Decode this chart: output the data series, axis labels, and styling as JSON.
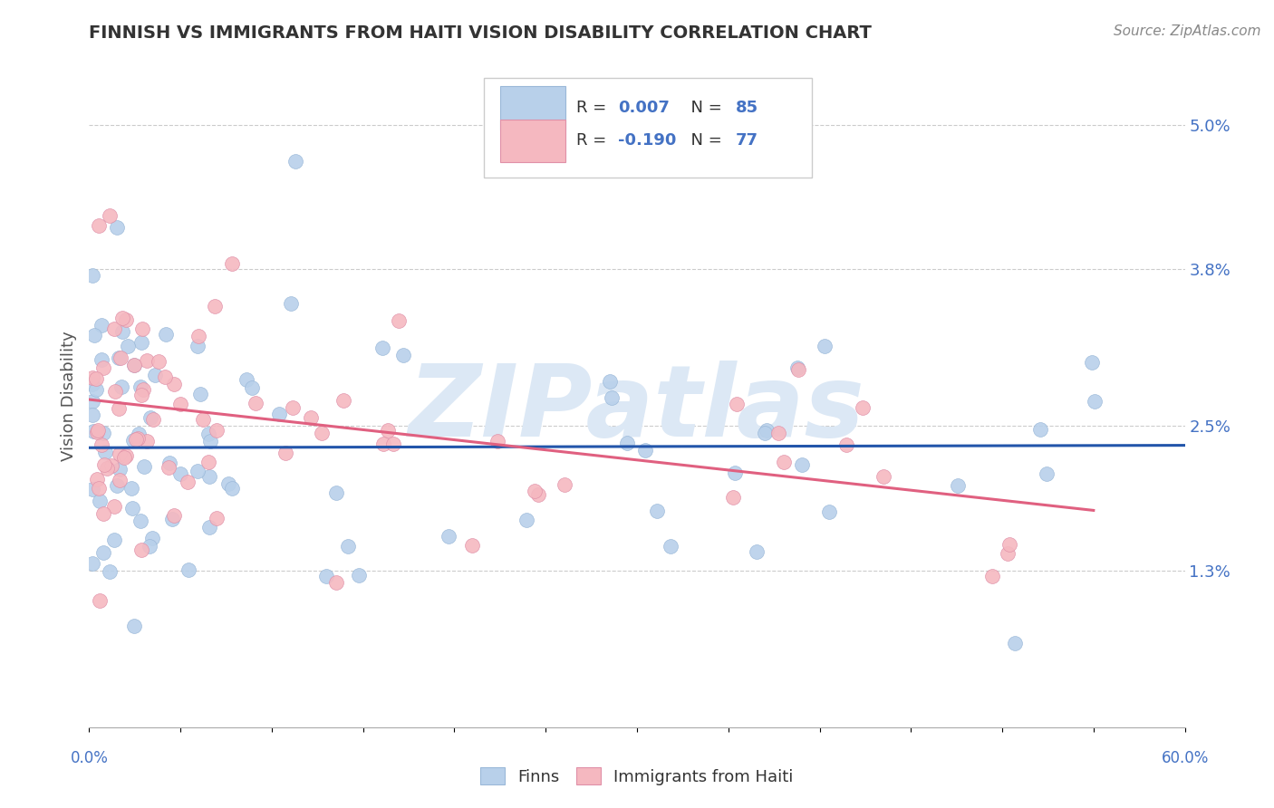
{
  "title": "FINNISH VS IMMIGRANTS FROM HAITI VISION DISABILITY CORRELATION CHART",
  "source": "Source: ZipAtlas.com",
  "ylabel": "Vision Disability",
  "xmin": 0.0,
  "xmax": 60.0,
  "ymin": 0.0,
  "ymax": 5.5,
  "yticks": [
    1.3,
    2.5,
    3.8,
    5.0
  ],
  "ytick_labels": [
    "1.3%",
    "2.5%",
    "3.8%",
    "5.0%"
  ],
  "finns_color": "#b8d0ea",
  "haiti_color": "#f5b8c0",
  "finns_line_color": "#2255aa",
  "haiti_line_color": "#e06080",
  "background_color": "#ffffff",
  "grid_color": "#cccccc",
  "axis_label_color": "#4472c4",
  "watermark_color": "#dce8f5",
  "finns_N": 85,
  "haiti_N": 77,
  "finns_trend_y0": 2.32,
  "finns_trend_y1": 2.34,
  "haiti_trend_y0": 2.72,
  "haiti_trend_y1": 1.8,
  "legend_R1": "0.007",
  "legend_R2": "-0.190",
  "legend_N1": "85",
  "legend_N2": "77"
}
